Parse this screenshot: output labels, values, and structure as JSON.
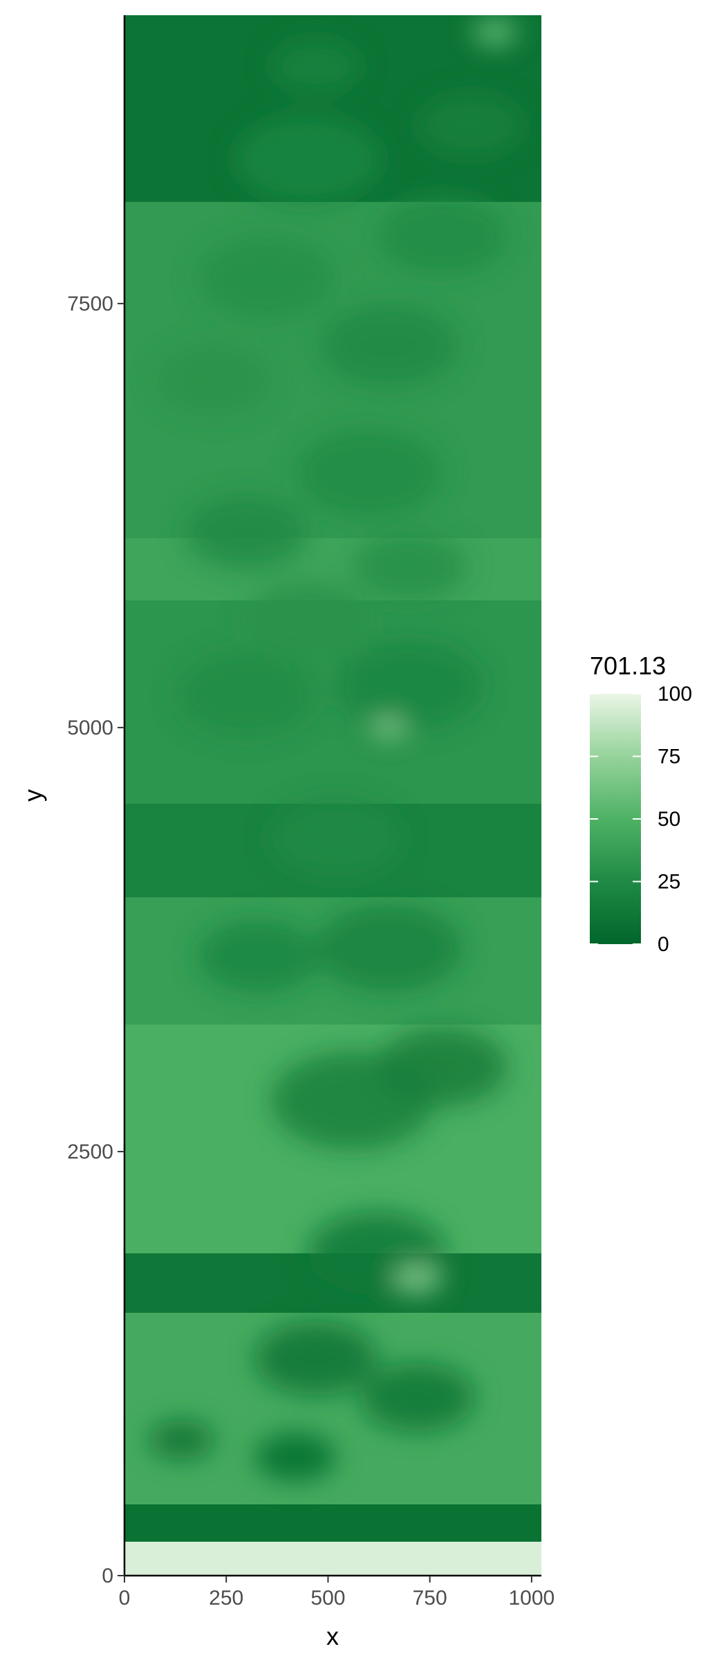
{
  "chart_data": {
    "type": "heatmap",
    "title": "",
    "xlabel": "x",
    "ylabel": "y",
    "xlim": [
      0,
      1024
    ],
    "ylim": [
      0,
      9200
    ],
    "x_ticks": [
      0,
      250,
      500,
      750,
      1000
    ],
    "x_tick_labels": [
      "0",
      "250",
      "500",
      "750",
      "1000"
    ],
    "y_ticks": [
      0,
      2500,
      5000,
      7500
    ],
    "y_tick_labels": [
      "0",
      "2500",
      "5000",
      "7500"
    ],
    "grid": false,
    "legend": {
      "title": "701.13",
      "placement": "right",
      "range": [
        0,
        100
      ],
      "breaks": [
        0,
        25,
        50,
        75,
        100
      ],
      "break_labels": [
        "0",
        "25",
        "50",
        "75",
        "100"
      ],
      "colors": [
        "#00662a",
        "#1f8a45",
        "#4eb265",
        "#96d39b",
        "#eaf6e6"
      ]
    },
    "bands": [
      {
        "y0": 0,
        "y1": 200,
        "value": 95
      },
      {
        "y0": 200,
        "y1": 420,
        "value": 8
      },
      {
        "y0": 420,
        "y1": 1550,
        "value": 45
      },
      {
        "y0": 1550,
        "y1": 1900,
        "value": 12
      },
      {
        "y0": 1900,
        "y1": 3250,
        "value": 48
      },
      {
        "y0": 3250,
        "y1": 4000,
        "value": 38
      },
      {
        "y0": 4000,
        "y1": 4550,
        "value": 20
      },
      {
        "y0": 4550,
        "y1": 5750,
        "value": 32
      },
      {
        "y0": 5750,
        "y1": 6120,
        "value": 42
      },
      {
        "y0": 6120,
        "y1": 8100,
        "value": 35
      },
      {
        "y0": 8100,
        "y1": 9200,
        "value": 10
      }
    ],
    "patches": [
      {
        "x": 140,
        "y": 800,
        "r": 80,
        "value": 8
      },
      {
        "x": 420,
        "y": 700,
        "r": 100,
        "value": 6
      },
      {
        "x": 470,
        "y": 1280,
        "r": 150,
        "value": 10
      },
      {
        "x": 720,
        "y": 1050,
        "r": 140,
        "value": 12
      },
      {
        "x": 620,
        "y": 1900,
        "r": 170,
        "value": 14
      },
      {
        "x": 560,
        "y": 2800,
        "r": 200,
        "value": 18
      },
      {
        "x": 780,
        "y": 3000,
        "r": 160,
        "value": 16
      },
      {
        "x": 330,
        "y": 3650,
        "r": 150,
        "value": 22
      },
      {
        "x": 650,
        "y": 3700,
        "r": 180,
        "value": 20
      },
      {
        "x": 520,
        "y": 4350,
        "r": 160,
        "value": 24
      },
      {
        "x": 300,
        "y": 5200,
        "r": 170,
        "value": 26
      },
      {
        "x": 700,
        "y": 5250,
        "r": 180,
        "value": 22
      },
      {
        "x": 450,
        "y": 5650,
        "r": 150,
        "value": 30
      },
      {
        "x": 700,
        "y": 5950,
        "r": 140,
        "value": 28
      },
      {
        "x": 300,
        "y": 6150,
        "r": 150,
        "value": 24
      },
      {
        "x": 600,
        "y": 6500,
        "r": 180,
        "value": 26
      },
      {
        "x": 220,
        "y": 7050,
        "r": 140,
        "value": 30
      },
      {
        "x": 650,
        "y": 7250,
        "r": 170,
        "value": 24
      },
      {
        "x": 350,
        "y": 7650,
        "r": 170,
        "value": 28
      },
      {
        "x": 780,
        "y": 7900,
        "r": 160,
        "value": 26
      },
      {
        "x": 450,
        "y": 8350,
        "r": 180,
        "value": 22
      },
      {
        "x": 850,
        "y": 8550,
        "r": 130,
        "value": 18
      },
      {
        "x": 470,
        "y": 8900,
        "r": 110,
        "value": 20
      },
      {
        "x": 910,
        "y": 9100,
        "r": 55,
        "value": 60
      },
      {
        "x": 720,
        "y": 1750,
        "r": 60,
        "value": 70
      },
      {
        "x": 650,
        "y": 5000,
        "r": 40,
        "value": 72
      }
    ]
  }
}
